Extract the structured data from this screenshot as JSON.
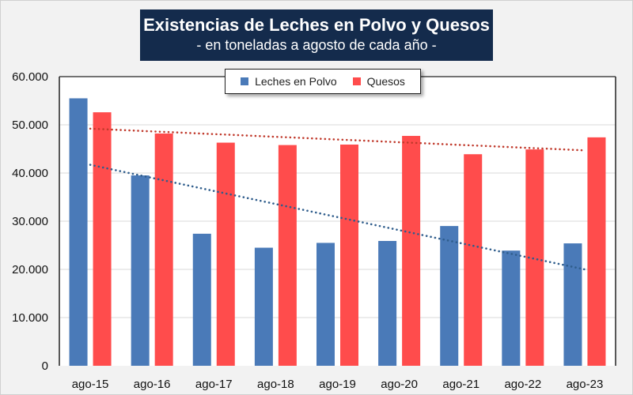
{
  "chart_data": {
    "type": "bar",
    "title": "Existencias de Leches en Polvo y Quesos",
    "subtitle": "- en toneladas a agosto de cada año -",
    "xlabel": "",
    "ylabel": "",
    "ylim": [
      0,
      60000
    ],
    "yticks": [
      0,
      10000,
      20000,
      30000,
      40000,
      50000,
      60000
    ],
    "ytick_labels": [
      "0",
      "10.000",
      "20.000",
      "30.000",
      "40.000",
      "50.000",
      "60.000"
    ],
    "grid": true,
    "legend_position": "top-center",
    "categories": [
      "ago-15",
      "ago-16",
      "ago-17",
      "ago-18",
      "ago-19",
      "ago-20",
      "ago-21",
      "ago-22",
      "ago-23"
    ],
    "series": [
      {
        "name": "Leches en Polvo",
        "color": "#4a7ab8",
        "values": [
          55500,
          39500,
          27400,
          24500,
          25500,
          25900,
          29000,
          23900,
          25400
        ]
      },
      {
        "name": "Quesos",
        "color": "#ff4c4c",
        "values": [
          52600,
          48200,
          46300,
          45800,
          45900,
          47700,
          43900,
          44900,
          47400
        ]
      }
    ],
    "trendlines": [
      {
        "series": "Leches en Polvo",
        "type": "linear",
        "style": "dotted",
        "color": "#2f5d8c",
        "start": 41700,
        "end": 20000
      },
      {
        "series": "Quesos",
        "type": "linear",
        "style": "dotted",
        "color": "#c0392b",
        "start": 49200,
        "end": 44700
      }
    ]
  },
  "legend": {
    "items": [
      {
        "label": "Leches en Polvo",
        "color": "#4a7ab8"
      },
      {
        "label": "Quesos",
        "color": "#ff4c4c"
      }
    ]
  }
}
